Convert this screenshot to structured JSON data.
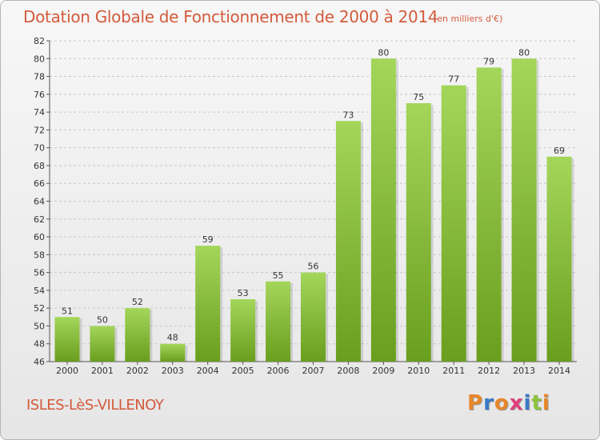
{
  "header": {
    "title": "Dotation Globale de Fonctionnement de 2000 à 2014",
    "subtitle": "(en milliers d'€)"
  },
  "footer": {
    "place": "ISLES-LèS-VILLENOY",
    "logo": {
      "letters": [
        "P",
        "r",
        "o",
        "x",
        "i",
        "t",
        "i"
      ],
      "colors": [
        "#e8862a",
        "#3a7bc8",
        "#e8862a",
        "#e04080",
        "#3a7bc8",
        "#8cc63f",
        "#e8862a"
      ]
    }
  },
  "colors": {
    "bar_light": "#a3d65a",
    "bar_dark": "#6a9e1e",
    "text_accent": "#d35a3c",
    "grid": "#c8c8c8"
  },
  "chart_data": {
    "type": "bar",
    "categories": [
      "2000",
      "2001",
      "2002",
      "2003",
      "2004",
      "2005",
      "2006",
      "2007",
      "2008",
      "2009",
      "2010",
      "2011",
      "2012",
      "2013",
      "2014"
    ],
    "values": [
      51,
      50,
      52,
      48,
      59,
      53,
      55,
      56,
      73,
      80,
      75,
      77,
      79,
      80,
      69
    ],
    "title": "Dotation Globale de Fonctionnement de 2000 à 2014",
    "subtitle": "(en milliers d'€)",
    "ylim": [
      46,
      82
    ],
    "yticks": [
      46,
      48,
      50,
      52,
      54,
      56,
      58,
      60,
      62,
      64,
      66,
      68,
      70,
      72,
      74,
      76,
      78,
      80,
      82
    ],
    "grid": true,
    "data_labels": true
  }
}
